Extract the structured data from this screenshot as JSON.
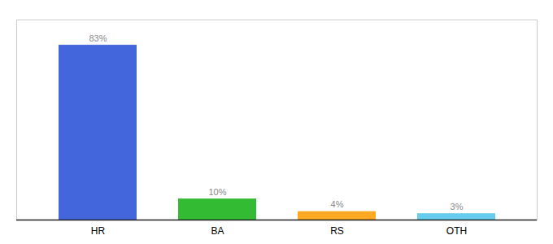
{
  "chart_data": {
    "type": "bar",
    "categories": [
      "HR",
      "BA",
      "RS",
      "OTH"
    ],
    "values": [
      83,
      10,
      4,
      3
    ],
    "value_labels": [
      "83%",
      "10%",
      "4%",
      "3%"
    ],
    "colors": [
      "#4466dd",
      "#33bb33",
      "#ffaa22",
      "#66ccee"
    ],
    "ylim": [
      0,
      95
    ],
    "data_labels": true,
    "tick_labels": "x",
    "grid": false
  }
}
